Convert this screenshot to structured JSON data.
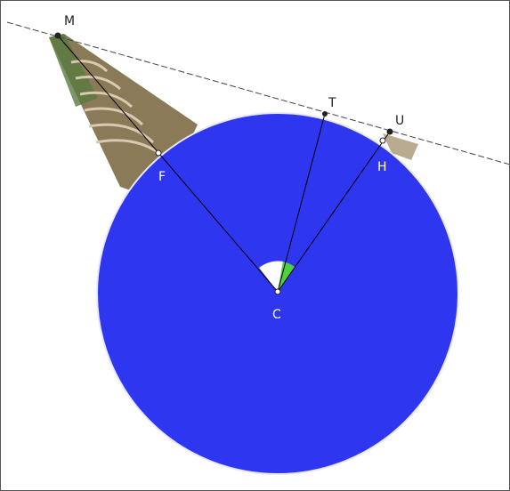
{
  "nodes": [
    {
      "label": "M"
    },
    {
      "label": "T"
    },
    {
      "label": "U"
    },
    {
      "label": "F"
    },
    {
      "label": "H"
    },
    {
      "label": "C"
    }
  ]
}
